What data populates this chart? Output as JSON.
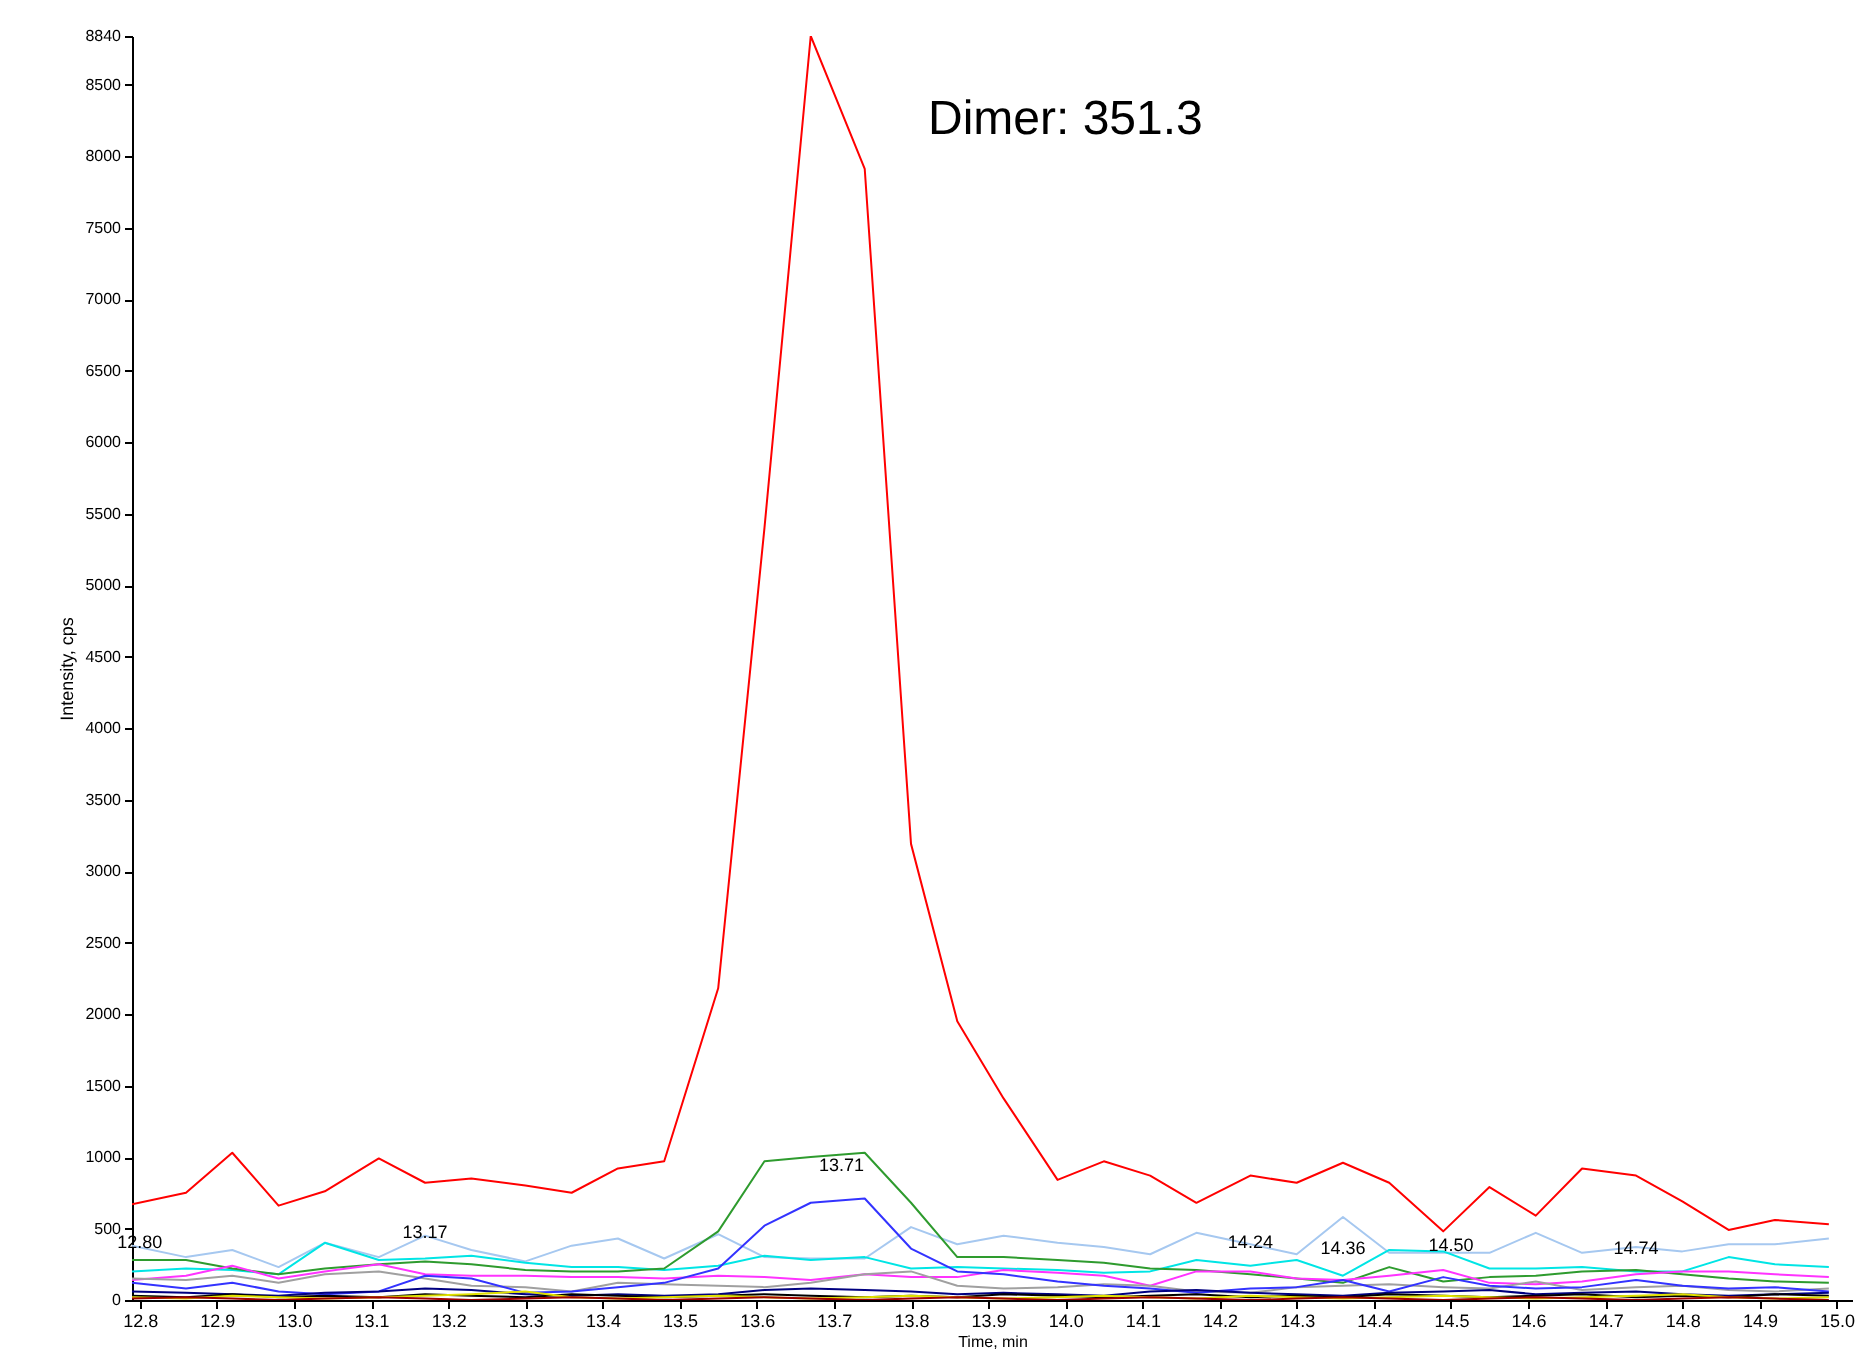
{
  "chart_data": {
    "type": "line",
    "xlabel": "Time, min",
    "ylabel": "Intensity, cps",
    "x": [
      12.79,
      12.86,
      12.92,
      12.98,
      13.04,
      13.11,
      13.17,
      13.23,
      13.3,
      13.36,
      13.42,
      13.48,
      13.55,
      13.61,
      13.67,
      13.74,
      13.8,
      13.86,
      13.92,
      13.99,
      14.05,
      14.11,
      14.17,
      14.24,
      14.3,
      14.36,
      14.42,
      14.49,
      14.55,
      14.61,
      14.67,
      14.74,
      14.8,
      14.86,
      14.92,
      14.99
    ],
    "series": [
      {
        "color": "#ff0000",
        "values": [
          670,
          750,
          1030,
          660,
          760,
          990,
          820,
          850,
          800,
          750,
          920,
          970,
          2180,
          5400,
          8840,
          7910,
          3190,
          1950,
          1410,
          840,
          970,
          870,
          680,
          870,
          820,
          960,
          820,
          480,
          790,
          590,
          920,
          870,
          690,
          490,
          560,
          530
        ]
      },
      {
        "color": "#a6c8f0",
        "values": [
          380,
          300,
          350,
          230,
          400,
          300,
          450,
          350,
          270,
          380,
          430,
          290,
          460,
          300,
          290,
          290,
          510,
          390,
          450,
          400,
          370,
          320,
          470,
          390,
          320,
          580,
          330,
          330,
          330,
          470,
          330,
          370,
          340,
          390,
          390,
          430
        ]
      },
      {
        "color": "#00e5e5",
        "values": [
          200,
          220,
          210,
          180,
          400,
          280,
          290,
          310,
          260,
          230,
          230,
          210,
          240,
          310,
          280,
          300,
          220,
          230,
          220,
          210,
          190,
          200,
          280,
          240,
          280,
          170,
          350,
          340,
          220,
          220,
          230,
          200,
          200,
          300,
          250,
          230
        ]
      },
      {
        "color": "#2e9b2e",
        "values": [
          280,
          280,
          220,
          180,
          220,
          250,
          270,
          250,
          210,
          200,
          200,
          220,
          480,
          970,
          1000,
          1030,
          680,
          300,
          300,
          280,
          260,
          220,
          210,
          180,
          150,
          120,
          230,
          130,
          160,
          170,
          200,
          210,
          180,
          150,
          130,
          120
        ]
      },
      {
        "color": "#ff33ff",
        "values": [
          140,
          170,
          240,
          150,
          200,
          250,
          180,
          170,
          170,
          160,
          160,
          150,
          170,
          160,
          140,
          180,
          160,
          160,
          210,
          190,
          170,
          100,
          200,
          200,
          150,
          140,
          170,
          210,
          120,
          110,
          130,
          180,
          200,
          200,
          180,
          160
        ]
      },
      {
        "color": "#a0a0a0",
        "values": [
          150,
          140,
          170,
          120,
          180,
          200,
          150,
          100,
          90,
          60,
          120,
          110,
          100,
          90,
          120,
          180,
          200,
          100,
          80,
          90,
          110,
          100,
          60,
          50,
          90,
          100,
          110,
          90,
          80,
          130,
          70,
          90,
          100,
          70,
          60,
          80
        ]
      },
      {
        "color": "#3333ff",
        "values": [
          120,
          80,
          120,
          60,
          40,
          60,
          170,
          150,
          50,
          60,
          90,
          120,
          220,
          520,
          680,
          710,
          360,
          200,
          180,
          130,
          100,
          80,
          50,
          80,
          90,
          140,
          60,
          160,
          100,
          80,
          90,
          140,
          100,
          80,
          90,
          60
        ]
      },
      {
        "color": "#000080",
        "values": [
          60,
          50,
          40,
          30,
          50,
          60,
          80,
          70,
          40,
          30,
          40,
          30,
          40,
          70,
          80,
          70,
          60,
          40,
          50,
          40,
          30,
          60,
          70,
          50,
          40,
          30,
          50,
          60,
          70,
          40,
          50,
          60,
          40,
          30,
          40,
          50
        ]
      },
      {
        "color": "#000000",
        "values": [
          30,
          20,
          40,
          20,
          30,
          20,
          40,
          30,
          20,
          40,
          30,
          20,
          30,
          40,
          30,
          20,
          30,
          20,
          40,
          30,
          20,
          30,
          40,
          20,
          30,
          20,
          40,
          30,
          20,
          30,
          40,
          20,
          30,
          20,
          40,
          30
        ]
      },
      {
        "color": "#e0e000",
        "values": [
          20,
          10,
          30,
          20,
          10,
          20,
          30,
          40,
          60,
          20,
          10,
          20,
          30,
          20,
          10,
          20,
          30,
          20,
          10,
          20,
          30,
          20,
          10,
          30,
          20,
          10,
          20,
          30,
          20,
          10,
          20,
          30,
          40,
          20,
          10,
          20
        ]
      },
      {
        "color": "#a00000",
        "values": [
          10,
          20,
          10,
          0,
          10,
          20,
          10,
          0,
          10,
          20,
          10,
          0,
          10,
          20,
          10,
          0,
          10,
          20,
          10,
          0,
          10,
          20,
          10,
          0,
          10,
          20,
          10,
          0,
          10,
          20,
          10,
          0,
          10,
          20,
          10,
          0
        ]
      }
    ],
    "xlim": [
      12.79,
      15.02
    ],
    "xticks": [
      12.8,
      12.9,
      {
        "value": 13,
        "label": "13.0"
      },
      13.1,
      13.2,
      13.3,
      13.4,
      13.5,
      13.6,
      13.7,
      13.8,
      13.9,
      {
        "value": 14,
        "label": "14.0"
      },
      14.1,
      14.2,
      14.3,
      14.4,
      14.5,
      14.6,
      14.7,
      14.8,
      14.9,
      {
        "value": 15,
        "label": "15.0"
      }
    ],
    "ylim": [
      0,
      8840
    ],
    "yticks": [
      0,
      500,
      1000,
      1500,
      2000,
      2500,
      3000,
      3500,
      4000,
      4500,
      5000,
      5500,
      6000,
      6500,
      7000,
      7500,
      8000,
      8500,
      8840
    ],
    "annotations": [
      "Dimer: 351.3",
      {
        "text": "12.80",
        "x": 12.8,
        "y": 180
      },
      {
        "text": "13.17",
        "x": 13.17,
        "y": 250
      },
      {
        "text": "13.71",
        "x": 13.71,
        "y": 720
      },
      {
        "text": "14.24",
        "x": 14.24,
        "y": 180
      },
      {
        "text": "14.36",
        "x": 14.36,
        "y": 140
      },
      {
        "text": "14.50",
        "x": 14.5,
        "y": 160
      },
      {
        "text": "14.74",
        "x": 14.74,
        "y": 140
      }
    ]
  }
}
